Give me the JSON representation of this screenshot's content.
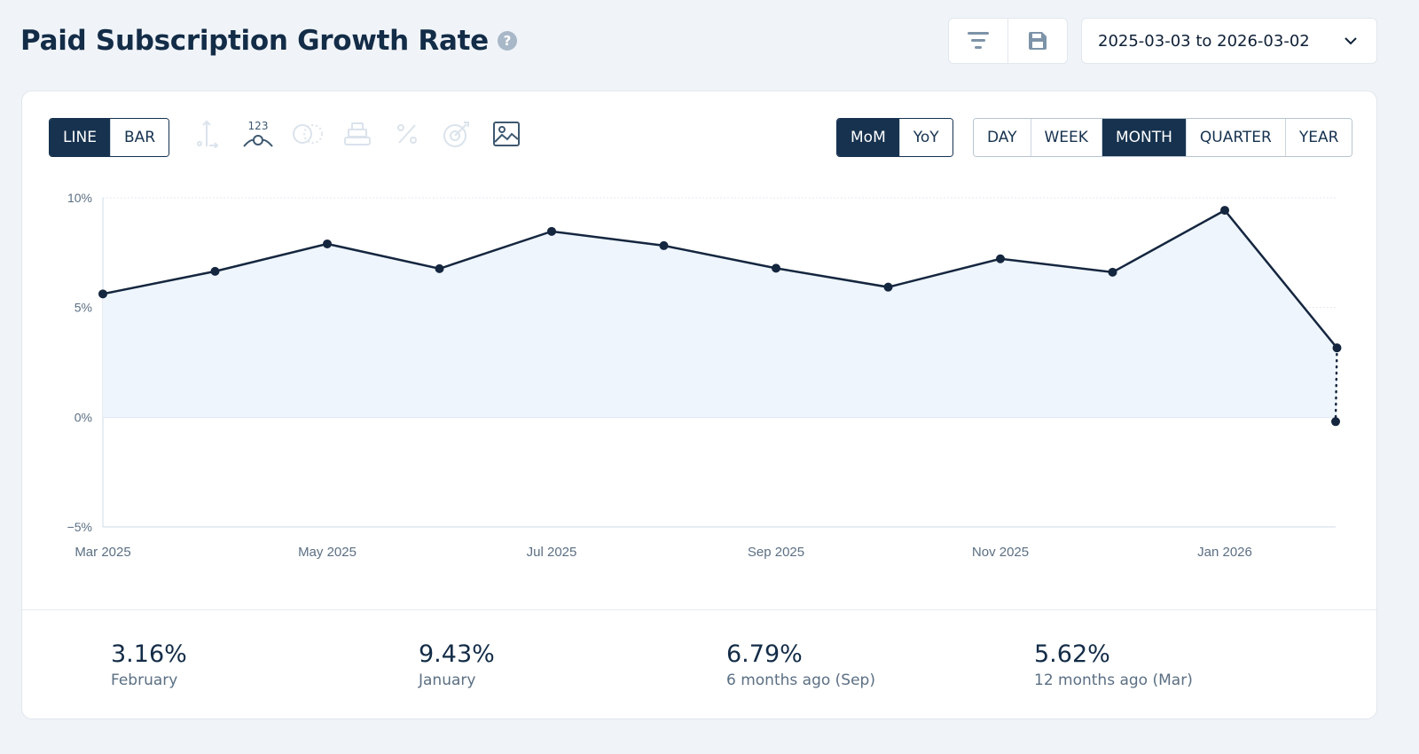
{
  "header": {
    "title": "Paid Subscription Growth Rate",
    "help_icon": "?",
    "date_range": "2025-03-03 to 2026-03-02"
  },
  "toolbar": {
    "chart_types": [
      {
        "label": "LINE",
        "active": true
      },
      {
        "label": "BAR",
        "active": false
      }
    ],
    "tools": [
      "axis-icon",
      "data-labels-icon",
      "compare-icon",
      "stack-icon",
      "percent-icon",
      "goal-icon",
      "image-export-icon"
    ],
    "data_labels_text": "123",
    "comparison": [
      {
        "label": "MoM",
        "active": true
      },
      {
        "label": "YoY",
        "active": false
      }
    ],
    "granularity": [
      {
        "label": "DAY",
        "active": false
      },
      {
        "label": "WEEK",
        "active": false
      },
      {
        "label": "MONTH",
        "active": true
      },
      {
        "label": "QUARTER",
        "active": false
      },
      {
        "label": "YEAR",
        "active": false
      }
    ]
  },
  "chart_data": {
    "type": "line",
    "x": [
      "2025-03",
      "2025-04",
      "2025-05",
      "2025-06",
      "2025-07",
      "2025-08",
      "2025-09",
      "2025-10",
      "2025-11",
      "2025-12",
      "2026-01",
      "2026-02",
      "2026-03"
    ],
    "values": [
      5.62,
      6.65,
      7.9,
      6.77,
      8.47,
      7.82,
      6.79,
      5.93,
      7.22,
      6.61,
      9.43,
      3.16,
      -0.2
    ],
    "partial_last_point": true,
    "ylim": [
      -5,
      10
    ],
    "yticks": [
      "10%",
      "5%",
      "0%",
      "−5%"
    ],
    "ytick_values": [
      10,
      5,
      0,
      -5
    ],
    "xticks": [
      "Mar 2025",
      "May 2025",
      "Jul 2025",
      "Sep 2025",
      "Nov 2025",
      "Jan 2026"
    ],
    "grid": true,
    "line_color": "#15263f",
    "fill_color": "#eef5fd"
  },
  "stats": [
    {
      "value": "3.16%",
      "label": "February"
    },
    {
      "value": "9.43%",
      "label": "January"
    },
    {
      "value": "6.79%",
      "label": "6 months ago (Sep)"
    },
    {
      "value": "5.62%",
      "label": "12 months ago (Mar)"
    }
  ]
}
